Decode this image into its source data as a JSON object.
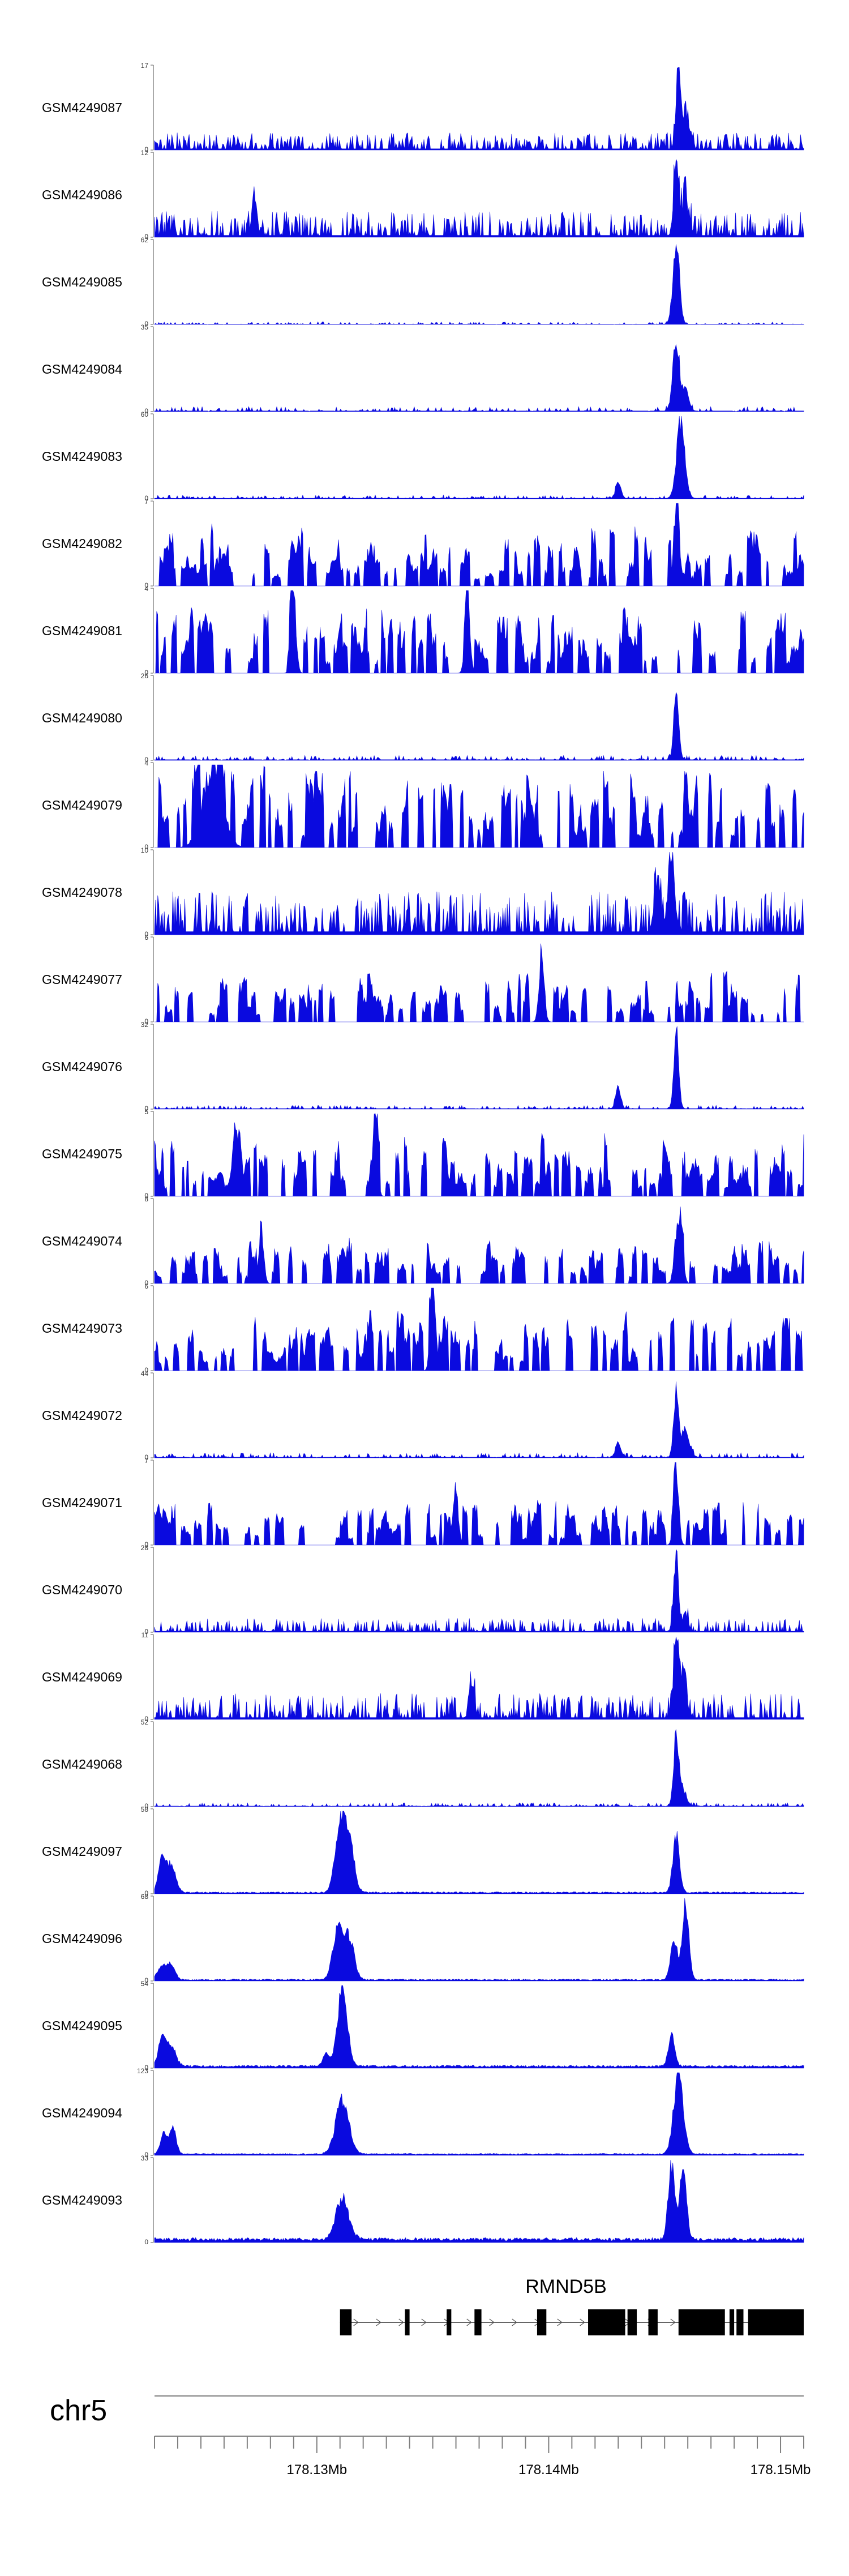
{
  "chart_data": {
    "type": "area",
    "genome": {
      "chromosome": "chr5",
      "xlim": [
        178123000,
        178151000
      ],
      "axis_ticks": [
        {
          "value": 178130000,
          "label": "178.13Mb"
        },
        {
          "value": 178140000,
          "label": "178.14Mb"
        },
        {
          "value": 178150000,
          "label": "178.15Mb"
        }
      ]
    },
    "gene": {
      "name": "RMND5B",
      "start": 178131000,
      "end": 178151000,
      "exons": [
        [
          178131000,
          178131500
        ],
        [
          178133800,
          178134000
        ],
        [
          178135600,
          178135800
        ],
        [
          178136800,
          178137100
        ],
        [
          178139500,
          178139900
        ],
        [
          178141700,
          178143300
        ],
        [
          178143400,
          178143800
        ],
        [
          178144300,
          178144700
        ],
        [
          178145600,
          178147600
        ],
        [
          178147800,
          178148000
        ],
        [
          178148100,
          178148400
        ],
        [
          178148600,
          178151000
        ]
      ]
    },
    "colors": {
      "track": "#0a0adf",
      "gene": "#000000",
      "axis": "#808080"
    },
    "tracks": [
      {
        "name": "GSM4249087",
        "ymax": "17",
        "type": "noisy",
        "base": 0.1,
        "peaks": [
          [
            178145600,
            0.85,
            150
          ],
          [
            178145900,
            0.4,
            200
          ]
        ]
      },
      {
        "name": "GSM4249086",
        "ymax": "12",
        "type": "noisy",
        "base": 0.15,
        "peaks": [
          [
            178145500,
            0.9,
            140
          ],
          [
            178145900,
            0.45,
            200
          ],
          [
            178127300,
            0.5,
            150
          ]
        ]
      },
      {
        "name": "GSM4249085",
        "ymax": "62",
        "type": "clean",
        "base": 0.02,
        "peaks": [
          [
            178145500,
            0.95,
            200
          ]
        ]
      },
      {
        "name": "GSM4249084",
        "ymax": "35",
        "type": "clean",
        "base": 0.04,
        "peaks": [
          [
            178145500,
            0.85,
            200
          ],
          [
            178145900,
            0.25,
            200
          ]
        ]
      },
      {
        "name": "GSM4249083",
        "ymax": "60",
        "type": "clean",
        "base": 0.03,
        "peaks": [
          [
            178145700,
            0.9,
            250
          ],
          [
            178143000,
            0.2,
            150
          ]
        ]
      },
      {
        "name": "GSM4249082",
        "ymax": "7",
        "type": "sparse",
        "base": 0.4,
        "peaks": [
          [
            178145500,
            0.95,
            150
          ]
        ]
      },
      {
        "name": "GSM4249081",
        "ymax": "4",
        "type": "sparse",
        "base": 0.45,
        "peaks": [
          [
            178129000,
            0.95,
            150
          ],
          [
            178136500,
            0.95,
            150
          ]
        ]
      },
      {
        "name": "GSM4249080",
        "ymax": "26",
        "type": "clean",
        "base": 0.04,
        "peaks": [
          [
            178145500,
            0.85,
            150
          ]
        ]
      },
      {
        "name": "GSM4249079",
        "ymax": "4",
        "type": "sparse",
        "base": 0.55,
        "peaks": [
          [
            178125500,
            0.95,
            600
          ]
        ]
      },
      {
        "name": "GSM4249078",
        "ymax": "10",
        "type": "noisy",
        "base": 0.25,
        "peaks": [
          [
            178145300,
            0.9,
            200
          ],
          [
            178144700,
            0.6,
            200
          ]
        ]
      },
      {
        "name": "GSM4249077",
        "ymax": "6",
        "type": "sparse",
        "base": 0.35,
        "peaks": [
          [
            178139700,
            0.9,
            150
          ]
        ]
      },
      {
        "name": "GSM4249076",
        "ymax": "32",
        "type": "clean",
        "base": 0.03,
        "peaks": [
          [
            178145500,
            0.9,
            150
          ],
          [
            178143000,
            0.25,
            150
          ]
        ]
      },
      {
        "name": "GSM4249075",
        "ymax": "5",
        "type": "sparse",
        "base": 0.45,
        "peaks": [
          [
            178126500,
            0.9,
            150
          ],
          [
            178132500,
            0.9,
            150
          ]
        ]
      },
      {
        "name": "GSM4249074",
        "ymax": "8",
        "type": "sparse",
        "base": 0.3,
        "peaks": [
          [
            178145600,
            0.85,
            200
          ],
          [
            178127600,
            0.7,
            150
          ]
        ]
      },
      {
        "name": "GSM4249073",
        "ymax": "6",
        "type": "sparse",
        "base": 0.4,
        "peaks": [
          [
            178135000,
            0.9,
            150
          ]
        ]
      },
      {
        "name": "GSM4249072",
        "ymax": "44",
        "type": "clean",
        "base": 0.04,
        "peaks": [
          [
            178145500,
            0.85,
            150
          ],
          [
            178145900,
            0.3,
            250
          ],
          [
            178143000,
            0.2,
            150
          ]
        ]
      },
      {
        "name": "GSM4249071",
        "ymax": "7",
        "type": "sparse",
        "base": 0.3,
        "peaks": [
          [
            178145500,
            0.9,
            150
          ],
          [
            178136000,
            0.6,
            150
          ]
        ]
      },
      {
        "name": "GSM4249070",
        "ymax": "28",
        "type": "noisy",
        "base": 0.08,
        "peaks": [
          [
            178145500,
            0.9,
            150
          ],
          [
            178145900,
            0.2,
            150
          ]
        ]
      },
      {
        "name": "GSM4249069",
        "ymax": "11",
        "type": "noisy",
        "base": 0.15,
        "peaks": [
          [
            178145500,
            0.9,
            150
          ],
          [
            178145800,
            0.45,
            200
          ],
          [
            178136700,
            0.35,
            150
          ]
        ]
      },
      {
        "name": "GSM4249068",
        "ymax": "52",
        "type": "clean",
        "base": 0.03,
        "peaks": [
          [
            178145500,
            0.9,
            150
          ],
          [
            178145800,
            0.2,
            200
          ]
        ]
      },
      {
        "name": "GSM4249097",
        "ymax": "58",
        "type": "smooth",
        "base": 0.02,
        "peaks": [
          [
            178123300,
            0.4,
            200
          ],
          [
            178123700,
            0.35,
            300
          ],
          [
            178131000,
            0.8,
            300
          ],
          [
            178131400,
            0.6,
            300
          ],
          [
            178145500,
            0.7,
            200
          ]
        ]
      },
      {
        "name": "GSM4249096",
        "ymax": "68",
        "type": "smooth",
        "base": 0.02,
        "peaks": [
          [
            178123300,
            0.15,
            250
          ],
          [
            178123700,
            0.2,
            250
          ],
          [
            178130900,
            0.6,
            300
          ],
          [
            178131400,
            0.5,
            300
          ],
          [
            178145400,
            0.5,
            200
          ],
          [
            178145900,
            0.95,
            200
          ]
        ]
      },
      {
        "name": "GSM4249095",
        "ymax": "54",
        "type": "smooth",
        "base": 0.03,
        "peaks": [
          [
            178123300,
            0.35,
            200
          ],
          [
            178123700,
            0.25,
            300
          ],
          [
            178130400,
            0.15,
            200
          ],
          [
            178131100,
            0.95,
            300
          ],
          [
            178145300,
            0.35,
            200
          ]
        ]
      },
      {
        "name": "GSM4249094",
        "ymax": "123",
        "type": "smooth",
        "base": 0.02,
        "peaks": [
          [
            178123400,
            0.25,
            200
          ],
          [
            178123800,
            0.3,
            200
          ],
          [
            178131100,
            0.65,
            400
          ],
          [
            178145600,
            0.95,
            300
          ]
        ]
      },
      {
        "name": "GSM4249093",
        "ymax": "33",
        "type": "smooth",
        "base": 0.05,
        "peaks": [
          [
            178131100,
            0.5,
            400
          ],
          [
            178145300,
            0.9,
            200
          ],
          [
            178145800,
            0.9,
            200
          ]
        ]
      }
    ]
  }
}
